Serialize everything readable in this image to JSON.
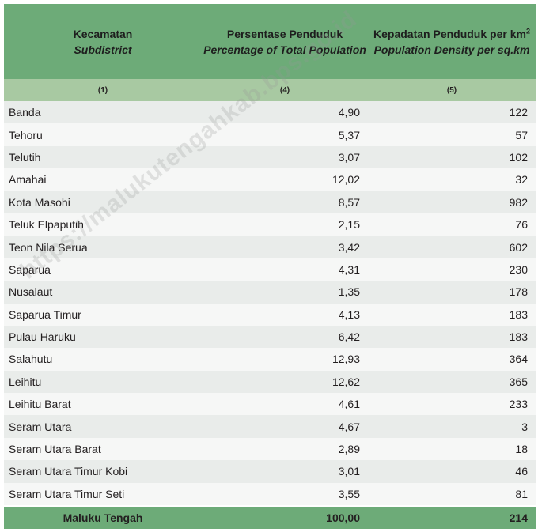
{
  "header": {
    "col1_id": "Kecamatan",
    "col1_en": "Subdistrict",
    "col2_id": "Persentase Penduduk",
    "col2_en": "Percentage of Total Population",
    "col3_id": "Kepadatan Penduduk per km",
    "col3_sup": "2",
    "col3_en": "Population Density per sq.km"
  },
  "col_numbers": [
    "(1)",
    "(4)",
    "(5)"
  ],
  "rows": [
    {
      "name": "Banda",
      "pct": "4,90",
      "density": "122"
    },
    {
      "name": "Tehoru",
      "pct": "5,37",
      "density": "57"
    },
    {
      "name": "Telutih",
      "pct": "3,07",
      "density": "102"
    },
    {
      "name": "Amahai",
      "pct": "12,02",
      "density": "32"
    },
    {
      "name": "Kota Masohi",
      "pct": "8,57",
      "density": "982"
    },
    {
      "name": "Teluk Elpaputih",
      "pct": "2,15",
      "density": "76"
    },
    {
      "name": "Teon Nila Serua",
      "pct": "3,42",
      "density": "602"
    },
    {
      "name": "Saparua",
      "pct": "4,31",
      "density": "230"
    },
    {
      "name": "Nusalaut",
      "pct": "1,35",
      "density": "178"
    },
    {
      "name": "Saparua Timur",
      "pct": "4,13",
      "density": "183"
    },
    {
      "name": "Pulau Haruku",
      "pct": "6,42",
      "density": "183"
    },
    {
      "name": "Salahutu",
      "pct": "12,93",
      "density": "364"
    },
    {
      "name": "Leihitu",
      "pct": "12,62",
      "density": "365"
    },
    {
      "name": "Leihitu Barat",
      "pct": "4,61",
      "density": "233"
    },
    {
      "name": "Seram Utara",
      "pct": "4,67",
      "density": "3"
    },
    {
      "name": "Seram Utara Barat",
      "pct": "2,89",
      "density": "18"
    },
    {
      "name": "Seram Utara Timur Kobi",
      "pct": "3,01",
      "density": "46"
    },
    {
      "name": "Seram Utara Timur Seti",
      "pct": "3,55",
      "density": "81"
    }
  ],
  "total": {
    "name": "Maluku Tengah",
    "pct": "100,00",
    "density": "214"
  },
  "watermark": "https://malukutengahkab.bps.go.id",
  "colors": {
    "header_green": "#6dab78",
    "number_row": "#a8c9a2",
    "row_light": "#f6f7f6",
    "row_dark": "#e9ecea"
  }
}
